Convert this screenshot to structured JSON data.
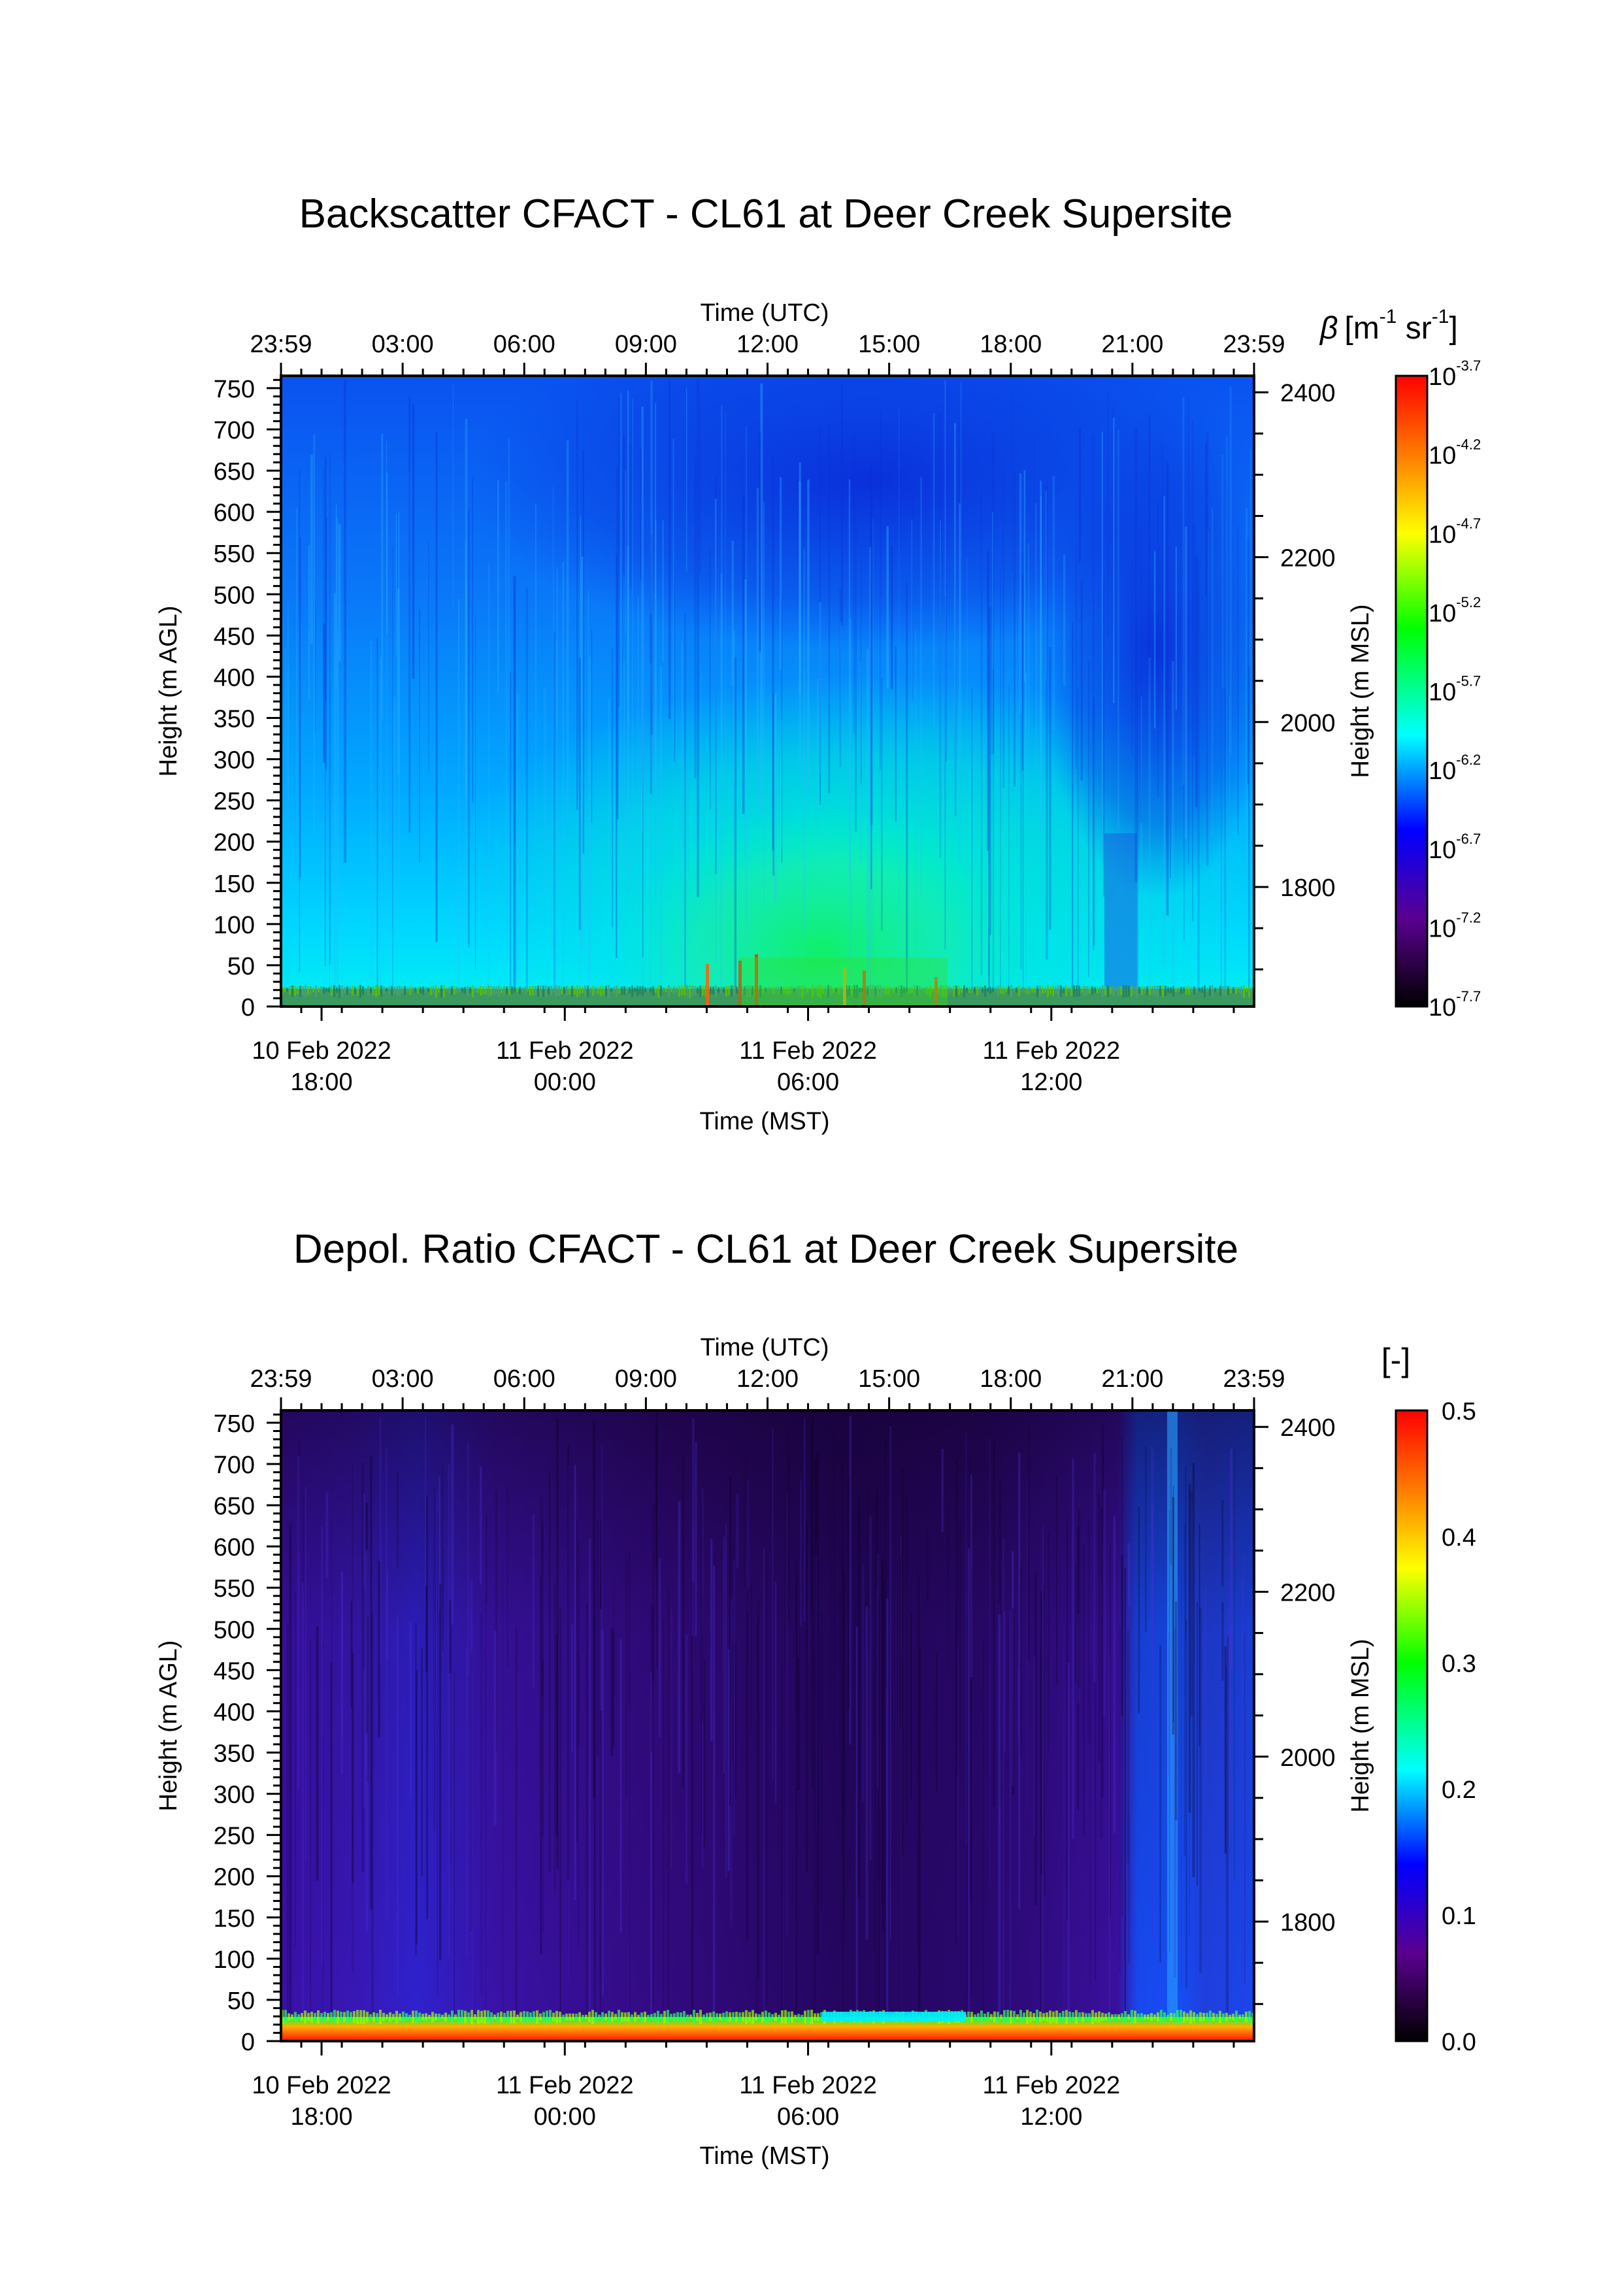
{
  "chart_data": [
    {
      "type": "heatmap",
      "title": "Backscatter CFACT - CL61 at Deer Creek Supersite",
      "x_top_label": "Time (UTC)",
      "x_top_ticks": [
        "23:59",
        "03:00",
        "06:00",
        "09:00",
        "12:00",
        "15:00",
        "18:00",
        "21:00",
        "23:59"
      ],
      "x_bottom_label": "Time (MST)",
      "x_bottom_ticks": [
        {
          "date": "10 Feb 2022",
          "time": "18:00"
        },
        {
          "date": "11 Feb 2022",
          "time": "00:00"
        },
        {
          "date": "11 Feb 2022",
          "time": "06:00"
        },
        {
          "date": "11 Feb 2022",
          "time": "12:00"
        }
      ],
      "ylabel": "Height (m AGL)",
      "y_ticks": [
        0,
        50,
        100,
        150,
        200,
        250,
        300,
        350,
        400,
        450,
        500,
        550,
        600,
        650,
        700,
        750
      ],
      "ylim": [
        0,
        765
      ],
      "y2label": "Height (m MSL)",
      "y2_ticks": [
        1800,
        2000,
        2200,
        2400
      ],
      "y2lim": [
        1655,
        2420
      ],
      "colorbar": {
        "label_symbol": "β",
        "label_units": "[m",
        "label_exp1": "-1",
        "label_mid": " sr",
        "label_exp2": "-1",
        "label_close": "]",
        "scale": "log",
        "tick_exponents": [
          "-7.7",
          "-7.2",
          "-6.7",
          "-6.2",
          "-5.7",
          "-5.2",
          "-4.7",
          "-4.2",
          "-3.7"
        ],
        "range": [
          "1e-7.7",
          "1e-3.7"
        ],
        "colormap": [
          "#000000",
          "#5a0090",
          "#0000ff",
          "#00ffff",
          "#00ff00",
          "#ffff00",
          "#ff8000",
          "#ff0000"
        ]
      }
    },
    {
      "type": "heatmap",
      "title": "Depol. Ratio CFACT - CL61 at Deer Creek Supersite",
      "x_top_label": "Time (UTC)",
      "x_top_ticks": [
        "23:59",
        "03:00",
        "06:00",
        "09:00",
        "12:00",
        "15:00",
        "18:00",
        "21:00",
        "23:59"
      ],
      "x_bottom_label": "Time (MST)",
      "x_bottom_ticks": [
        {
          "date": "10 Feb 2022",
          "time": "18:00"
        },
        {
          "date": "11 Feb 2022",
          "time": "00:00"
        },
        {
          "date": "11 Feb 2022",
          "time": "06:00"
        },
        {
          "date": "11 Feb 2022",
          "time": "12:00"
        }
      ],
      "ylabel": "Height (m AGL)",
      "y_ticks": [
        0,
        50,
        100,
        150,
        200,
        250,
        300,
        350,
        400,
        450,
        500,
        550,
        600,
        650,
        700,
        750
      ],
      "ylim": [
        0,
        765
      ],
      "y2label": "Height (m MSL)",
      "y2_ticks": [
        1800,
        2000,
        2200,
        2400
      ],
      "y2lim": [
        1655,
        2420
      ],
      "colorbar": {
        "label": "[-]",
        "scale": "linear",
        "ticks": [
          "0.0",
          "0.1",
          "0.2",
          "0.3",
          "0.4",
          "0.5"
        ],
        "range": [
          0,
          0.5
        ],
        "colormap": [
          "#000000",
          "#5a0090",
          "#0000ff",
          "#00ffff",
          "#00ff00",
          "#ffff00",
          "#ff8000",
          "#ff0000"
        ]
      }
    }
  ]
}
